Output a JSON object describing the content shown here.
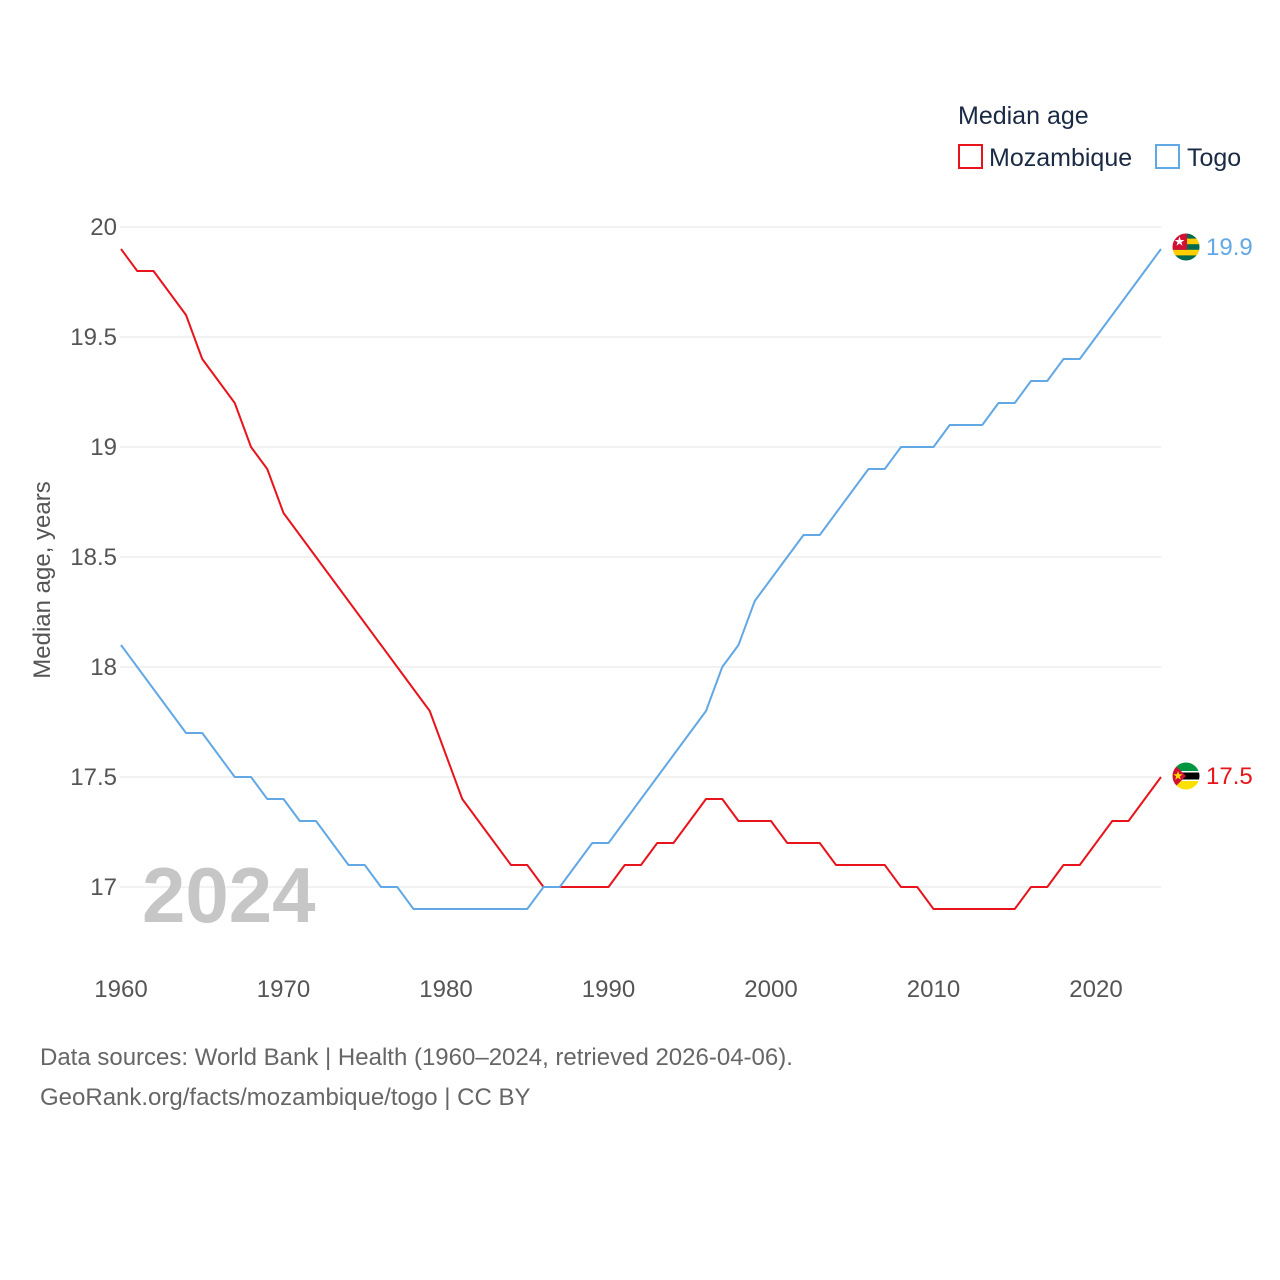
{
  "chart_data": {
    "type": "line",
    "title": "",
    "legend_title": "Median age",
    "legend_position": "top-right",
    "ylabel": "Median age, years",
    "xlabel": "",
    "ylim": [
      16.9,
      20
    ],
    "xlim": [
      1960,
      2024
    ],
    "yticks": [
      17,
      17.5,
      18,
      18.5,
      19,
      19.5,
      20
    ],
    "ytick_labels": [
      "17",
      "17.5",
      "18",
      "18.5",
      "19",
      "19.5",
      "20"
    ],
    "xticks": [
      1960,
      1970,
      1980,
      1990,
      2000,
      2010,
      2020
    ],
    "xtick_labels": [
      "1960",
      "1970",
      "1980",
      "1990",
      "2000",
      "2010",
      "2020"
    ],
    "grid": true,
    "watermark_year": "2024",
    "series": [
      {
        "name": "Mozambique",
        "color": "#e8141b",
        "flag_icon": "mozambique-flag-icon",
        "end_label": "17.5",
        "x": [
          1960,
          1961,
          1962,
          1963,
          1964,
          1965,
          1966,
          1967,
          1968,
          1969,
          1970,
          1971,
          1972,
          1973,
          1974,
          1975,
          1976,
          1977,
          1978,
          1979,
          1980,
          1981,
          1982,
          1983,
          1984,
          1985,
          1986,
          1987,
          1988,
          1989,
          1990,
          1991,
          1992,
          1993,
          1994,
          1995,
          1996,
          1997,
          1998,
          1999,
          2000,
          2001,
          2002,
          2003,
          2004,
          2005,
          2006,
          2007,
          2008,
          2009,
          2010,
          2011,
          2012,
          2013,
          2014,
          2015,
          2016,
          2017,
          2018,
          2019,
          2020,
          2021,
          2022,
          2023,
          2024
        ],
        "values": [
          19.9,
          19.8,
          19.8,
          19.7,
          19.6,
          19.4,
          19.3,
          19.2,
          19.0,
          18.9,
          18.7,
          18.6,
          18.5,
          18.4,
          18.3,
          18.2,
          18.1,
          18.0,
          17.9,
          17.8,
          17.6,
          17.4,
          17.3,
          17.2,
          17.1,
          17.1,
          17.0,
          17.0,
          17.0,
          17.0,
          17.0,
          17.1,
          17.1,
          17.2,
          17.2,
          17.3,
          17.4,
          17.4,
          17.3,
          17.3,
          17.3,
          17.2,
          17.2,
          17.2,
          17.1,
          17.1,
          17.1,
          17.1,
          17.0,
          17.0,
          16.9,
          16.9,
          16.9,
          16.9,
          16.9,
          16.9,
          17.0,
          17.0,
          17.1,
          17.1,
          17.2,
          17.3,
          17.3,
          17.4,
          17.5
        ]
      },
      {
        "name": "Togo",
        "color": "#62a8e5",
        "flag_icon": "togo-flag-icon",
        "end_label": "19.9",
        "x": [
          1960,
          1961,
          1962,
          1963,
          1964,
          1965,
          1966,
          1967,
          1968,
          1969,
          1970,
          1971,
          1972,
          1973,
          1974,
          1975,
          1976,
          1977,
          1978,
          1979,
          1980,
          1981,
          1982,
          1983,
          1984,
          1985,
          1986,
          1987,
          1988,
          1989,
          1990,
          1991,
          1992,
          1993,
          1994,
          1995,
          1996,
          1997,
          1998,
          1999,
          2000,
          2001,
          2002,
          2003,
          2004,
          2005,
          2006,
          2007,
          2008,
          2009,
          2010,
          2011,
          2012,
          2013,
          2014,
          2015,
          2016,
          2017,
          2018,
          2019,
          2020,
          2021,
          2022,
          2023,
          2024
        ],
        "values": [
          18.1,
          18.0,
          17.9,
          17.8,
          17.7,
          17.7,
          17.6,
          17.5,
          17.5,
          17.4,
          17.4,
          17.3,
          17.3,
          17.2,
          17.1,
          17.1,
          17.0,
          17.0,
          16.9,
          16.9,
          16.9,
          16.9,
          16.9,
          16.9,
          16.9,
          16.9,
          17.0,
          17.0,
          17.1,
          17.2,
          17.2,
          17.3,
          17.4,
          17.5,
          17.6,
          17.7,
          17.8,
          18.0,
          18.1,
          18.3,
          18.4,
          18.5,
          18.6,
          18.6,
          18.7,
          18.8,
          18.9,
          18.9,
          19.0,
          19.0,
          19.0,
          19.1,
          19.1,
          19.1,
          19.2,
          19.2,
          19.3,
          19.3,
          19.4,
          19.4,
          19.5,
          19.6,
          19.7,
          19.8,
          19.9
        ]
      }
    ]
  },
  "footer": {
    "line1": "Data sources: World Bank | Health (1960–2024, retrieved 2026-04-06).",
    "line2": "GeoRank.org/facts/mozambique/togo | CC BY"
  }
}
